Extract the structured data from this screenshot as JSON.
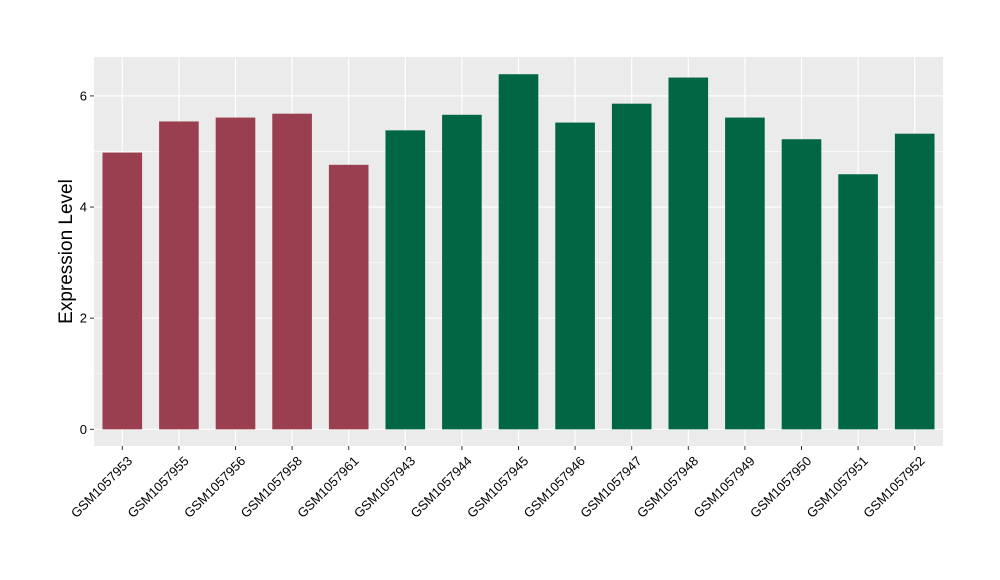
{
  "chart_data": {
    "type": "bar",
    "title": "",
    "xlabel": "",
    "ylabel": "Expression Level",
    "ylim": [
      -0.3,
      6.7
    ],
    "yticks": [
      0,
      2,
      4,
      6
    ],
    "grid": true,
    "background_color": "#ebebeb",
    "categories": [
      "GSM1057953",
      "GSM1057955",
      "GSM1057956",
      "GSM1057958",
      "GSM1057961",
      "GSM1057943",
      "GSM1057944",
      "GSM1057945",
      "GSM1057946",
      "GSM1057947",
      "GSM1057948",
      "GSM1057949",
      "GSM1057950",
      "GSM1057951",
      "GSM1057952"
    ],
    "values": [
      4.98,
      5.54,
      5.61,
      5.68,
      4.76,
      5.38,
      5.66,
      6.39,
      5.52,
      5.86,
      6.33,
      5.61,
      5.22,
      4.59,
      5.32
    ],
    "groups": [
      "group1",
      "group1",
      "group1",
      "group1",
      "group1",
      "group2",
      "group2",
      "group2",
      "group2",
      "group2",
      "group2",
      "group2",
      "group2",
      "group2",
      "group2"
    ],
    "group_colors": {
      "group1": "#9a3f4f",
      "group2": "#006644"
    }
  }
}
